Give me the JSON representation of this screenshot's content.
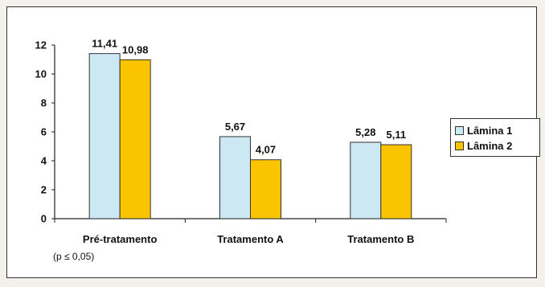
{
  "chart_data": {
    "type": "bar",
    "categories": [
      "Pré-tratamento",
      "Tratamento A",
      "Tratamento B"
    ],
    "category_notes": [
      "(p ≤ 0,05)",
      "",
      ""
    ],
    "series": [
      {
        "name": "Lâmina 1",
        "values": [
          11.41,
          5.67,
          5.28
        ],
        "labels": [
          "11,41",
          "5,67",
          "5,28"
        ],
        "color": "#cce9f3"
      },
      {
        "name": "Lâmina 2",
        "values": [
          10.98,
          4.07,
          5.11
        ],
        "labels": [
          "10,98",
          "4,07",
          "5,11"
        ],
        "color": "#fbc400"
      }
    ],
    "yticks": [
      "0",
      "2",
      "4",
      "6",
      "8",
      "10",
      "12"
    ],
    "ylim": [
      0,
      12
    ],
    "grid": false,
    "legend_position": "right"
  }
}
